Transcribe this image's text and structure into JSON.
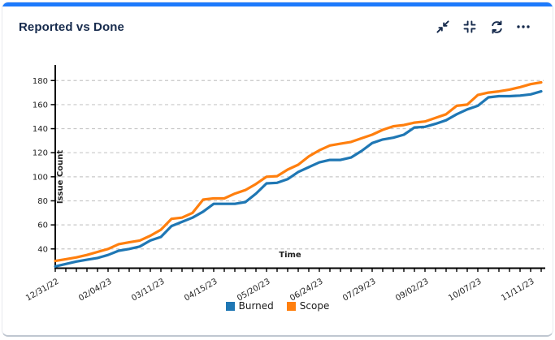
{
  "card": {
    "title": "Reported vs Done",
    "accent_color": "#1d7afc",
    "title_color": "#172b4d",
    "toolbar": {
      "icons": [
        "collapse-icon",
        "focus-icon",
        "refresh-icon",
        "more-icon"
      ],
      "icon_color": "#172b4d"
    }
  },
  "chart_data": {
    "type": "line",
    "title": "",
    "xlabel": "Time",
    "ylabel": "Issue Count",
    "x_start": "12/31/22",
    "x_step_days": 7,
    "x_tick_labels": [
      "12/31/22",
      "02/04/23",
      "03/11/23",
      "04/15/23",
      "05/20/23",
      "06/24/23",
      "07/29/23",
      "09/02/23",
      "10/07/23",
      "11/11/23"
    ],
    "x_label_every": 5,
    "ylim": [
      24,
      193
    ],
    "yticks": [
      40,
      60,
      80,
      100,
      120,
      140,
      160,
      180
    ],
    "grid": "horizontal-dashed",
    "grid_color": "#c8c8c8",
    "axis_color": "#000000",
    "tick_label_color": "#222222",
    "legend_position": "bottom",
    "series": [
      {
        "name": "Burned",
        "color": "#1f77b4",
        "values": [
          25.5,
          27.5,
          29.5,
          31,
          32.5,
          35,
          38.5,
          40,
          42,
          47,
          50,
          59,
          62.5,
          66,
          71,
          77.5,
          77.5,
          77.5,
          79,
          86,
          94.5,
          95,
          98,
          104,
          108,
          112,
          114,
          114,
          116,
          121.5,
          128,
          131,
          132.5,
          135,
          141,
          141.5,
          144,
          147,
          152,
          156,
          159,
          166,
          167,
          167,
          167.5,
          168.5,
          171
        ]
      },
      {
        "name": "Scope",
        "color": "#ff7f0e",
        "values": [
          30,
          31.5,
          33,
          35,
          37.5,
          40,
          44,
          45.5,
          47,
          51,
          56,
          65,
          66,
          70,
          81,
          82,
          82,
          86,
          89,
          94,
          100,
          100.5,
          106,
          110,
          117,
          122,
          126,
          127.5,
          129,
          132,
          135,
          139,
          142,
          143,
          145,
          146,
          149,
          152,
          159,
          160,
          168,
          170,
          171,
          172.5,
          174.5,
          177,
          178.5
        ]
      }
    ]
  }
}
